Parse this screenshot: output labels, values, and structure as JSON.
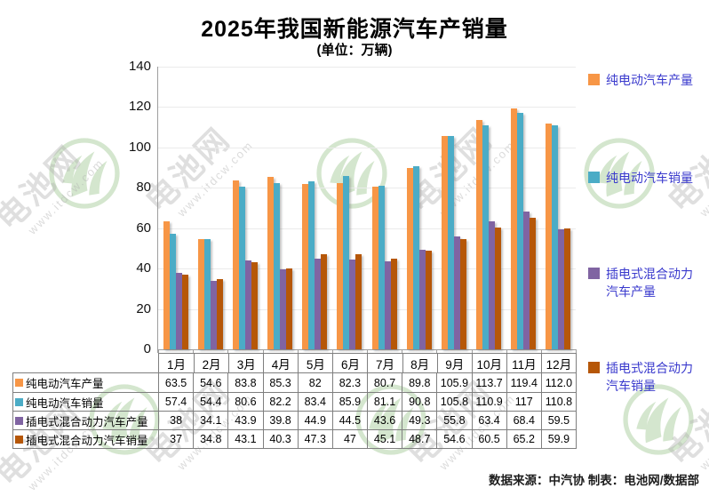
{
  "header": {
    "title": "2025年我国新能源汽车产销量",
    "subtitle": "(单位：万辆)"
  },
  "footer": {
    "source_note": "数据来源：中汽协  制表：电池网/数据部"
  },
  "watermark": {
    "brand": "电池网",
    "site": "www.itdcw.com"
  },
  "colors": {
    "bev_production": "#F79646",
    "bev_sales": "#4BACC6",
    "phev_production": "#8064A2",
    "phev_sales": "#B65708",
    "legend_text": "#3A3ACD",
    "axis": "#9E9E9E",
    "gridline": "#EBEBEB",
    "table_border": "#7F7F7F",
    "watermark_green": "#8FBF7F"
  },
  "chart_data": {
    "type": "bar",
    "title": "2025年我国新能源汽车产销量",
    "unit_label": "(单位：万辆)",
    "categories": [
      "1月",
      "2月",
      "3月",
      "4月",
      "5月",
      "6月",
      "7月",
      "8月",
      "9月",
      "10月",
      "11月",
      "12月"
    ],
    "series": [
      {
        "name": "纯电动汽车产量",
        "color": "#F79646",
        "values": [
          63.5,
          54.6,
          83.8,
          85.3,
          82,
          82.3,
          80.7,
          89.8,
          105.9,
          113.7,
          119.4,
          112.0
        ],
        "display": [
          "63.5",
          "54.6",
          "83.8",
          "85.3",
          "82",
          "82.3",
          "80.7",
          "89.8",
          "105.9",
          "113.7",
          "119.4",
          "112.0"
        ]
      },
      {
        "name": "纯电动汽车销量",
        "color": "#4BACC6",
        "values": [
          57.4,
          54.4,
          80.6,
          82.2,
          83.4,
          85.9,
          81.1,
          90.8,
          105.8,
          110.9,
          117,
          110.8
        ],
        "display": [
          "57.4",
          "54.4",
          "80.6",
          "82.2",
          "83.4",
          "85.9",
          "81.1",
          "90.8",
          "105.8",
          "110.9",
          "117",
          "110.8"
        ]
      },
      {
        "name": "插电式混合动力汽车产量",
        "color": "#8064A2",
        "values": [
          38,
          34.1,
          43.9,
          39.8,
          44.9,
          44.5,
          43.6,
          49.3,
          55.8,
          63.4,
          68.4,
          59.5
        ],
        "display": [
          "38",
          "34.1",
          "43.9",
          "39.8",
          "44.9",
          "44.5",
          "43.6",
          "49.3",
          "55.8",
          "63.4",
          "68.4",
          "59.5"
        ]
      },
      {
        "name": "插电式混合动力汽车销量",
        "color": "#B65708",
        "values": [
          37,
          34.8,
          43.1,
          40.3,
          47.3,
          47,
          45.1,
          48.7,
          54.6,
          60.5,
          65.2,
          59.9
        ],
        "display": [
          "37",
          "34.8",
          "43.1",
          "40.3",
          "47.3",
          "47",
          "45.1",
          "48.7",
          "54.6",
          "60.5",
          "65.2",
          "59.9"
        ]
      }
    ],
    "ylim": [
      0,
      140
    ],
    "yticks": [
      0,
      20,
      40,
      60,
      80,
      100,
      120,
      140
    ],
    "grid": true,
    "legend_position": "right",
    "data_table_shown": true
  }
}
